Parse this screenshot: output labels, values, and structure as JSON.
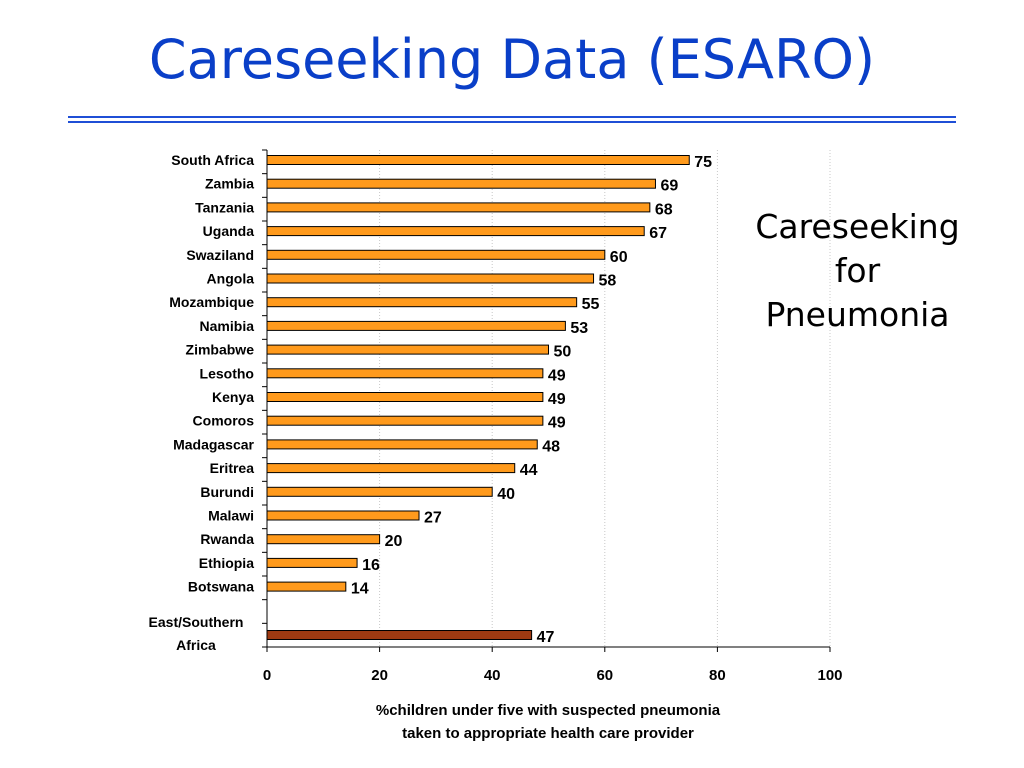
{
  "slide": {
    "title": "Careseeking Data (ESARO)",
    "caption_lines": [
      "Careseeking",
      "for",
      "Pneumonia"
    ]
  },
  "colors": {
    "title": "#0a3fc8",
    "bar_fill": "#ff9a1c",
    "aggregate_fill": "#9e3a12",
    "bar_stroke": "#000000",
    "grid": "#c8c8c8"
  },
  "chart_data": {
    "type": "bar",
    "orientation": "horizontal",
    "categories": [
      "South Africa",
      "Zambia",
      "Tanzania",
      "Uganda",
      "Swaziland",
      "Angola",
      "Mozambique",
      "Namibia",
      "Zimbabwe",
      "Lesotho",
      "Kenya",
      "Comoros",
      "Madagascar",
      "Eritrea",
      "Burundi",
      "Malawi",
      "Rwanda",
      "Ethiopia",
      "Botswana"
    ],
    "values": [
      75,
      69,
      68,
      67,
      60,
      58,
      55,
      53,
      50,
      49,
      49,
      49,
      48,
      44,
      40,
      27,
      20,
      16,
      14
    ],
    "aggregate": {
      "label_lines": [
        "East/Southern",
        "Africa"
      ],
      "value": 47
    },
    "xlim": [
      0,
      100
    ],
    "xticks": [
      0,
      20,
      40,
      60,
      80,
      100
    ],
    "xlabel_lines": [
      "%children under five with suspected pneumonia",
      "taken to appropriate health care provider"
    ],
    "grid": "vertical dotted",
    "data_labels": true
  }
}
